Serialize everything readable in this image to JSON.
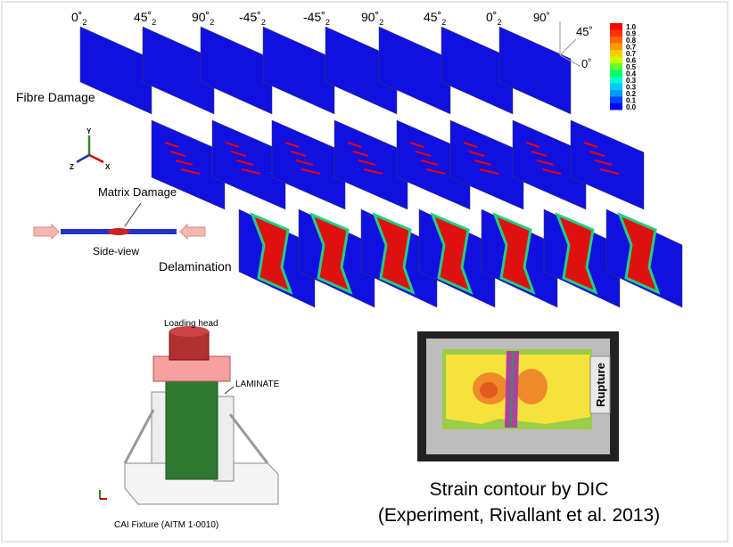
{
  "plies": [
    {
      "angle": "0˚",
      "sub": "2"
    },
    {
      "angle": "45˚",
      "sub": "2"
    },
    {
      "angle": "90˚",
      "sub": "2"
    },
    {
      "angle": "-45˚",
      "sub": "2"
    },
    {
      "angle": "-45˚",
      "sub": "2"
    },
    {
      "angle": "90˚",
      "sub": "2"
    },
    {
      "angle": "45˚",
      "sub": "2"
    },
    {
      "angle": "0˚",
      "sub": "2"
    }
  ],
  "orientation": {
    "top": "90˚",
    "diagonal": "45˚",
    "right": "0˚"
  },
  "legend": {
    "labels": [
      "1.0",
      "0.9",
      "0.8",
      "0.7",
      "0.7",
      "0.6",
      "0.5",
      "0.4",
      "0.3",
      "0.3",
      "0.2",
      "0.1",
      "0.0"
    ],
    "colors": [
      "#ff0000",
      "#ff3300",
      "#ff6600",
      "#ff9900",
      "#ffcc00",
      "#ccff00",
      "#66ff33",
      "#00ff66",
      "#00ffcc",
      "#00ccff",
      "#0099ff",
      "#0044ff",
      "#0000ff"
    ]
  },
  "labels": {
    "fibre": "Fibre Damage",
    "matrix": "Matrix Damage",
    "side_view": "Side-view",
    "delamination": "Delamination"
  },
  "triad": {
    "y": "Y",
    "z": "Z",
    "x": "X"
  },
  "fixture": {
    "loading_head": "Loading head",
    "laminate": "LAMINATE",
    "caption": "CAI Fixture (AITM 1-0010)"
  },
  "dic": {
    "rupture": "Rupture",
    "caption_1": "Strain contour by DIC",
    "caption_2": "(Experiment, Rivallant et al. 2013)"
  }
}
